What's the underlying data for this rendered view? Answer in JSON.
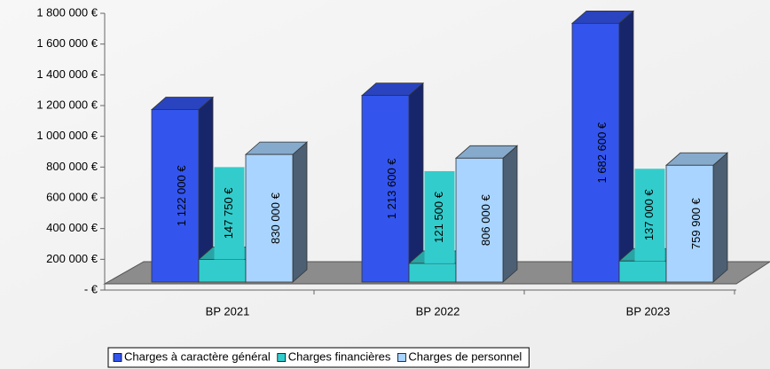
{
  "chart_data": {
    "type": "bar3d",
    "categories": [
      "BP 2021",
      "BP 2022",
      "BP 2023"
    ],
    "series": [
      {
        "name": "Charges à caractère général",
        "color": "#3355ee",
        "values": [
          1122000,
          1213600,
          1682600
        ],
        "value_labels": [
          "1 122 000 €",
          "1 213 600 €",
          "1 682 600 €"
        ]
      },
      {
        "name": "Charges financières",
        "color": "#33cccc",
        "values": [
          147750,
          121500,
          137000
        ],
        "value_labels": [
          "147 750 €",
          "121 500 €",
          "137 000 €"
        ]
      },
      {
        "name": "Charges de personnel",
        "color": "#a8d4ff",
        "values": [
          830000,
          806000,
          759900
        ],
        "value_labels": [
          "830 000 €",
          "806 000 €",
          "759 900 €"
        ]
      }
    ],
    "ylim": [
      0,
      1800000
    ],
    "yticks": [
      {
        "value": 0,
        "label": "- €"
      },
      {
        "value": 200000,
        "label": "200 000 €"
      },
      {
        "value": 400000,
        "label": "400 000 €"
      },
      {
        "value": 600000,
        "label": "600 000 €"
      },
      {
        "value": 800000,
        "label": "800 000 €"
      },
      {
        "value": 1000000,
        "label": "1 000 000 €"
      },
      {
        "value": 1200000,
        "label": "1 200 000 €"
      },
      {
        "value": 1400000,
        "label": "1 400 000 €"
      },
      {
        "value": 1600000,
        "label": "1 600 000 €"
      },
      {
        "value": 1800000,
        "label": "1 800 000 €"
      }
    ],
    "legend": "bottom"
  }
}
